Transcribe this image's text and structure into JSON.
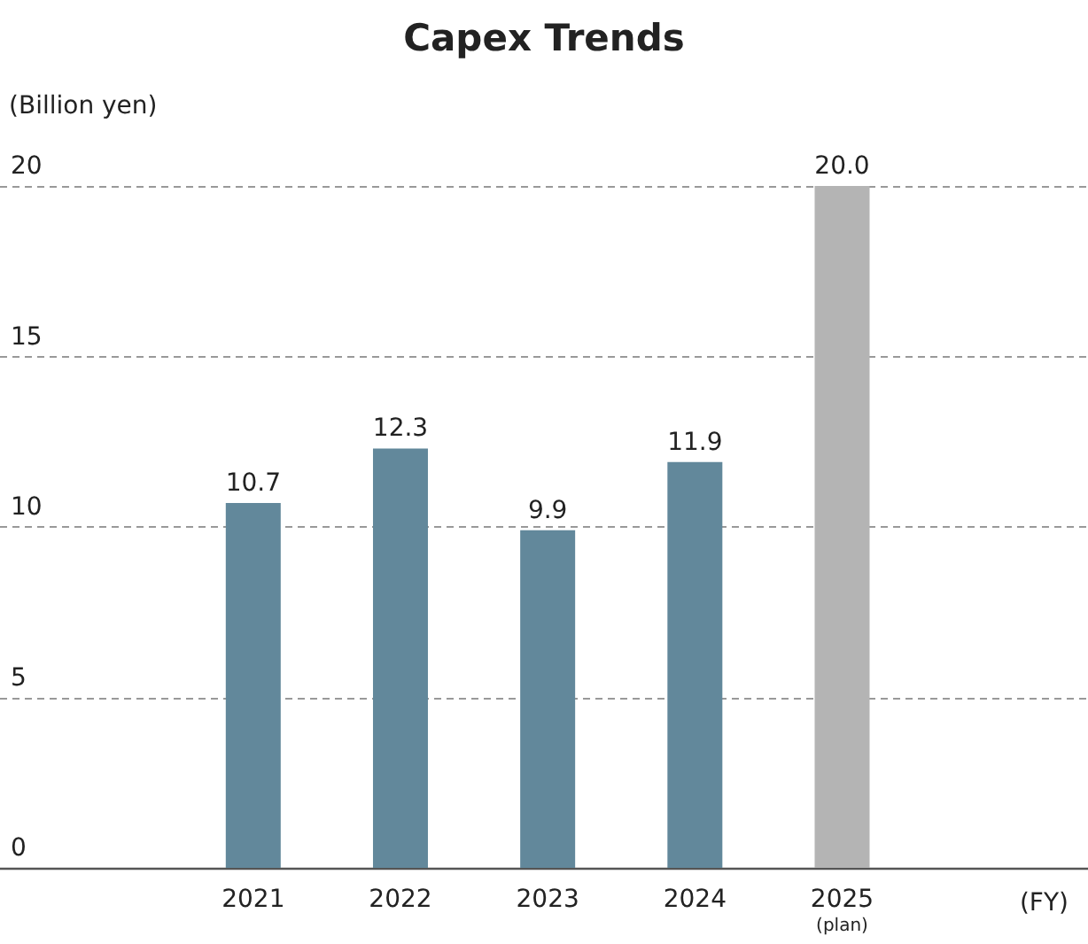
{
  "chart_data": {
    "type": "bar",
    "title": "Capex Trends",
    "ylabel": "(Billion yen)",
    "xlabel": "(FY)",
    "categories": [
      "2021",
      "2022",
      "2023",
      "2024",
      "2025\n(plan)"
    ],
    "values": [
      10.7,
      12.3,
      9.9,
      11.9,
      20.0
    ],
    "value_labels": [
      "10.7",
      "12.3",
      "9.9",
      "11.9",
      "20.0"
    ],
    "colors": [
      "#62889b",
      "#62889b",
      "#62889b",
      "#62889b",
      "#b4b4b4"
    ],
    "ylim": [
      0,
      20
    ],
    "yticks": [
      0,
      5,
      10,
      15,
      20
    ],
    "grid": "y"
  }
}
